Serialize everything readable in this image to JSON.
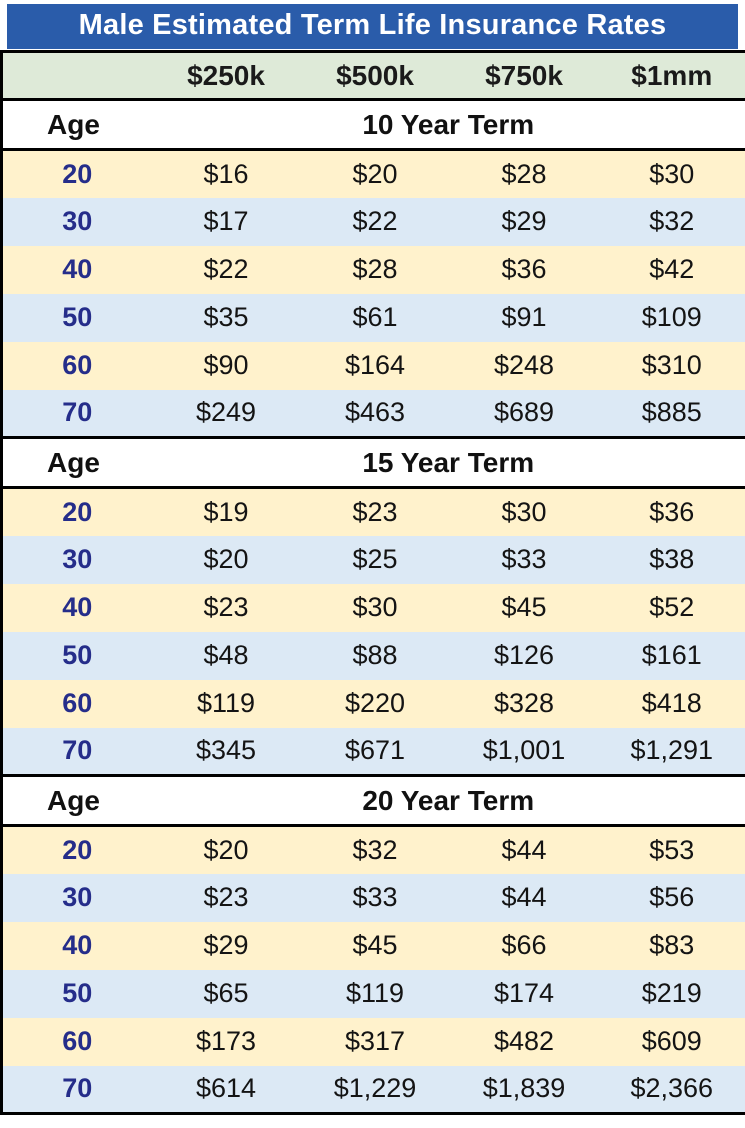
{
  "chart_data": {
    "type": "table",
    "title": "Male Estimated Term Life Insurance Rates",
    "age_label": "Age",
    "columns": [
      "$250k",
      "$500k",
      "$750k",
      "$1mm"
    ],
    "sections": [
      {
        "label": "10 Year Term",
        "rows": [
          {
            "age": "20",
            "values": [
              "$16",
              "$20",
              "$28",
              "$30"
            ]
          },
          {
            "age": "30",
            "values": [
              "$17",
              "$22",
              "$29",
              "$32"
            ]
          },
          {
            "age": "40",
            "values": [
              "$22",
              "$28",
              "$36",
              "$42"
            ]
          },
          {
            "age": "50",
            "values": [
              "$35",
              "$61",
              "$91",
              "$109"
            ]
          },
          {
            "age": "60",
            "values": [
              "$90",
              "$164",
              "$248",
              "$310"
            ]
          },
          {
            "age": "70",
            "values": [
              "$249",
              "$463",
              "$689",
              "$885"
            ]
          }
        ]
      },
      {
        "label": "15 Year Term",
        "rows": [
          {
            "age": "20",
            "values": [
              "$19",
              "$23",
              "$30",
              "$36"
            ]
          },
          {
            "age": "30",
            "values": [
              "$20",
              "$25",
              "$33",
              "$38"
            ]
          },
          {
            "age": "40",
            "values": [
              "$23",
              "$30",
              "$45",
              "$52"
            ]
          },
          {
            "age": "50",
            "values": [
              "$48",
              "$88",
              "$126",
              "$161"
            ]
          },
          {
            "age": "60",
            "values": [
              "$119",
              "$220",
              "$328",
              "$418"
            ]
          },
          {
            "age": "70",
            "values": [
              "$345",
              "$671",
              "$1,001",
              "$1,291"
            ]
          }
        ]
      },
      {
        "label": "20 Year Term",
        "rows": [
          {
            "age": "20",
            "values": [
              "$20",
              "$32",
              "$44",
              "$53"
            ]
          },
          {
            "age": "30",
            "values": [
              "$23",
              "$33",
              "$44",
              "$56"
            ]
          },
          {
            "age": "40",
            "values": [
              "$29",
              "$45",
              "$66",
              "$83"
            ]
          },
          {
            "age": "50",
            "values": [
              "$65",
              "$119",
              "$174",
              "$219"
            ]
          },
          {
            "age": "60",
            "values": [
              "$173",
              "$317",
              "$482",
              "$609"
            ]
          },
          {
            "age": "70",
            "values": [
              "$614",
              "$1,229",
              "$1,839",
              "$2,366"
            ]
          }
        ]
      }
    ]
  },
  "colors": {
    "title_bg": "#2a5caa",
    "header_bg": "#deead8",
    "row_cream": "#fff2cc",
    "row_blue": "#dce9f5",
    "age_text": "#252d8a"
  }
}
